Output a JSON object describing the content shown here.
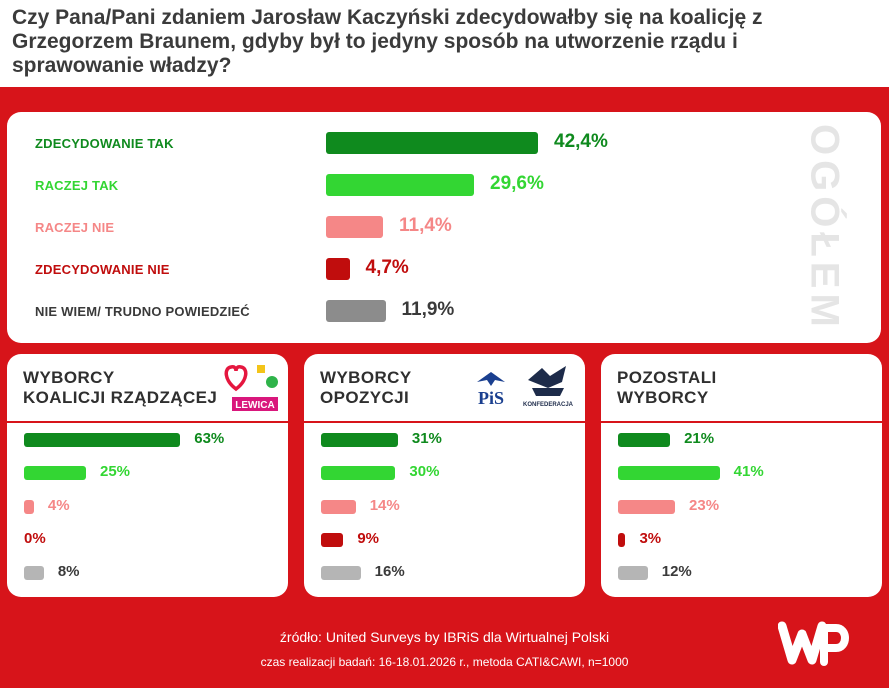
{
  "header": {
    "title": "Czy Pana/Pani zdaniem Jarosław Kaczyński zdecydowałby się na koalicję z Grzegorzem Braunem, gdyby był to jedyny sposób na utworzenie rządu i sprawowanie władzy?"
  },
  "colors": {
    "strong_yes": "#0f8a1e",
    "yes": "#33d633",
    "no": "#f58787",
    "strong_no": "#c00d0d",
    "dont_know": "#8c8c8c",
    "dont_know_small": "#b5b5b5",
    "background_red": "#d7141a"
  },
  "chart_data": [
    {
      "type": "bar",
      "group": "OGÓŁEM",
      "categories": [
        "ZDECYDOWANIE TAK",
        "RACZEJ TAK",
        "RACZEJ NIE",
        "ZDECYDOWANIE NIE",
        "NIE WIEM/ TRUDNO POWIEDZIEĆ"
      ],
      "values": [
        42.4,
        29.6,
        11.4,
        4.7,
        11.9
      ],
      "value_labels": [
        "42,4%",
        "29,6%",
        "11,4%",
        "4,7%",
        "11,9%"
      ],
      "unit": "%"
    },
    {
      "type": "bar",
      "group": "WYBORCY KOALICJI RZĄDZĄCEJ",
      "title": "WYBORCY KOALICJI RZĄDZĄCEJ",
      "values": [
        63,
        25,
        4,
        0,
        8
      ],
      "value_labels": [
        "63%",
        "25%",
        "4%",
        "0%",
        "8%"
      ],
      "unit": "%"
    },
    {
      "type": "bar",
      "group": "WYBORCY OPOZYCJI",
      "title": "WYBORCY OPOZYCJI",
      "values": [
        31,
        30,
        14,
        9,
        16
      ],
      "value_labels": [
        "31%",
        "30%",
        "14%",
        "9%",
        "16%"
      ],
      "unit": "%"
    },
    {
      "type": "bar",
      "group": "POZOSTALI WYBORCY",
      "title": "POZOSTALI WYBORCY",
      "values": [
        21,
        41,
        23,
        3,
        12
      ],
      "value_labels": [
        "21%",
        "41%",
        "23%",
        "3%",
        "12%"
      ],
      "unit": "%"
    }
  ],
  "main": {
    "side_label": "OGÓŁEM"
  },
  "cards": {
    "coalition": {
      "title_line1": "WYBORCY",
      "title_line2": "KOALICJI RZĄDZĄCEJ",
      "logo_text": "LEWICA"
    },
    "opposition": {
      "title_line1": "WYBORCY",
      "title_line2": "OPOZYCJI",
      "logo_pis": "PiS",
      "logo_konf": "KONFEDERACJA"
    },
    "others": {
      "title_line1": "POZOSTALI",
      "title_line2": "WYBORCY"
    }
  },
  "footer": {
    "source": "źródło: United Surveys by IBRiS dla Wirtualnej Polski",
    "time": "czas realizacji badań: 16-18.01.2026 r., metoda CATI&CAWI, n=1000",
    "logo_icon": "wp-logo-icon"
  }
}
